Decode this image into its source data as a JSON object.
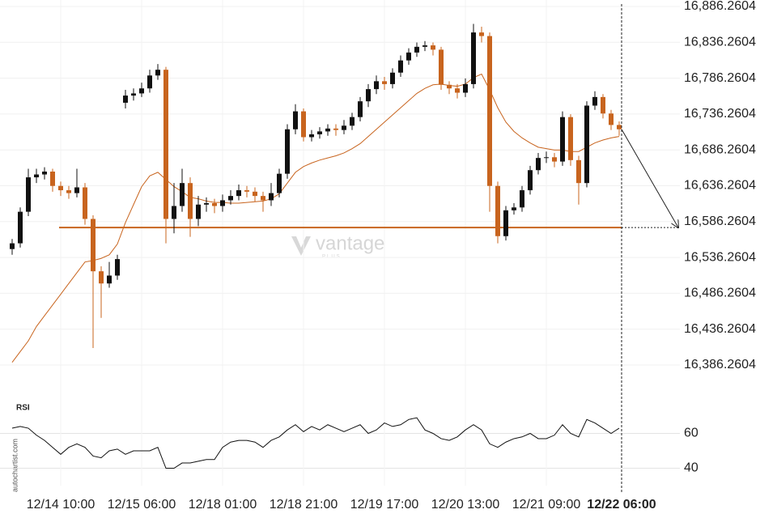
{
  "chart_data": [
    {
      "type": "candlestick",
      "categories": [
        null,
        null,
        null,
        null,
        null,
        null,
        "12/14 10:00",
        null,
        null,
        null,
        null,
        null,
        null,
        null,
        null,
        null,
        "12/15 06:00",
        null,
        null,
        null,
        null,
        null,
        null,
        null,
        null,
        null,
        "12/18 01:00",
        null,
        null,
        null,
        null,
        null,
        null,
        null,
        null,
        null,
        "12/18 21:00",
        null,
        null,
        null,
        null,
        null,
        null,
        null,
        null,
        null,
        "12/19 17:00",
        null,
        null,
        null,
        null,
        null,
        null,
        null,
        null,
        null,
        "12/20 13:00",
        null,
        null,
        null,
        null,
        null,
        null,
        null,
        null,
        null,
        "12/21 09:00",
        null,
        null,
        null,
        null,
        null,
        null,
        null,
        null,
        "12/22 06:00"
      ],
      "open": [
        16548,
        16556,
        16600,
        16648,
        16652,
        16656,
        16636,
        16630,
        16626,
        16634,
        16590,
        16517,
        16500,
        16511,
        16752,
        16762,
        16765,
        16772,
        16790,
        16798,
        16590,
        16608,
        16640,
        16590,
        16610,
        16612,
        16608,
        16616,
        16622,
        16630,
        16628,
        16622,
        16616,
        16626,
        16653,
        16715,
        16740,
        16704,
        16708,
        16712,
        16716,
        16714,
        16720,
        16732,
        16754,
        16771,
        16782,
        16778,
        16794,
        16811,
        16822,
        16830,
        16832,
        16826,
        16777,
        16772,
        16766,
        16778,
        16850,
        16845,
        16636,
        16566,
        16602,
        16606,
        16630,
        16658,
        16675,
        16676,
        16670,
        16732,
        16672,
        16640,
        16748,
        16760,
        16737,
        16721
      ],
      "high": [
        16562,
        16606,
        16660,
        16660,
        16662,
        16660,
        16642,
        16636,
        16660,
        16640,
        16595,
        16524,
        16530,
        16540,
        16770,
        16772,
        16780,
        16798,
        16806,
        16802,
        16640,
        16660,
        16648,
        16622,
        16620,
        16618,
        16624,
        16630,
        16638,
        16636,
        16634,
        16628,
        16640,
        16660,
        16722,
        16750,
        16744,
        16714,
        16718,
        16722,
        16722,
        16728,
        16738,
        16760,
        16778,
        16790,
        16788,
        16800,
        16818,
        16828,
        16836,
        16838,
        16836,
        16830,
        16782,
        16778,
        16786,
        16862,
        16858,
        16850,
        16642,
        16608,
        16612,
        16636,
        16664,
        16682,
        16684,
        16682,
        16740,
        16736,
        16678,
        16754,
        16768,
        16764,
        16742,
        16726
      ],
      "low": [
        16540,
        16550,
        16594,
        16640,
        16645,
        16628,
        16622,
        16618,
        16620,
        16582,
        16410,
        16452,
        16494,
        16505,
        16744,
        16755,
        16760,
        16766,
        16784,
        16556,
        16570,
        16600,
        16565,
        16580,
        16600,
        16598,
        16600,
        16610,
        16616,
        16620,
        16614,
        16600,
        16608,
        16620,
        16646,
        16708,
        16698,
        16698,
        16702,
        16706,
        16706,
        16708,
        16714,
        16726,
        16746,
        16764,
        16770,
        16772,
        16788,
        16805,
        16816,
        16824,
        16818,
        16770,
        16764,
        16758,
        16760,
        16772,
        16836,
        16600,
        16556,
        16560,
        16596,
        16600,
        16624,
        16652,
        16668,
        16662,
        16664,
        16664,
        16610,
        16634,
        16742,
        16730,
        16714,
        16706
      ],
      "close": [
        16556,
        16600,
        16648,
        16652,
        16656,
        16636,
        16630,
        16626,
        16634,
        16590,
        16517,
        16500,
        16511,
        16534,
        16762,
        16765,
        16772,
        16790,
        16798,
        16590,
        16608,
        16640,
        16590,
        16610,
        16612,
        16608,
        16616,
        16622,
        16630,
        16628,
        16622,
        16616,
        16626,
        16653,
        16715,
        16740,
        16704,
        16708,
        16712,
        16716,
        16714,
        16720,
        16732,
        16754,
        16771,
        16782,
        16778,
        16794,
        16811,
        16822,
        16830,
        16832,
        16826,
        16777,
        16772,
        16766,
        16778,
        16850,
        16845,
        16636,
        16566,
        16602,
        16606,
        16630,
        16658,
        16675,
        16676,
        16670,
        16732,
        16672,
        16640,
        16748,
        16760,
        16737,
        16721,
        16715
      ],
      "up_color": "#111111",
      "down_color": "#c8641e",
      "ma": {
        "color": "#c8641e",
        "values": [
          16390,
          16405,
          16420,
          16440,
          16455,
          16470,
          16485,
          16500,
          16515,
          16530,
          16532,
          16535,
          16540,
          16555,
          16585,
          16610,
          16635,
          16650,
          16655,
          16645,
          16635,
          16628,
          16620,
          16618,
          16615,
          16613,
          16613,
          16612,
          16612,
          16613,
          16614,
          16615,
          16618,
          16625,
          16640,
          16655,
          16663,
          16668,
          16672,
          16675,
          16678,
          16682,
          16688,
          16695,
          16705,
          16715,
          16725,
          16735,
          16745,
          16755,
          16765,
          16772,
          16777,
          16778,
          16776,
          16775,
          16778,
          16787,
          16792,
          16770,
          16745,
          16725,
          16712,
          16703,
          16696,
          16690,
          16688,
          16686,
          16686,
          16684,
          16684,
          16690,
          16696,
          16700,
          16703,
          16705
        ]
      },
      "level": {
        "value": 16578,
        "color": "#c8641e"
      },
      "ylim": [
        16342.2604,
        16895.2604
      ],
      "yticks": [
        {
          "value": 16386.2604,
          "label": "16,386.2604"
        },
        {
          "value": 16436.2604,
          "label": "16,436.2604"
        },
        {
          "value": 16486.2604,
          "label": "16,486.2604"
        },
        {
          "value": 16536.2604,
          "label": "16,536.2604"
        },
        {
          "value": 16586.2604,
          "label": "16,586.2604"
        },
        {
          "value": 16636.2604,
          "label": "16,636.2604"
        },
        {
          "value": 16686.2604,
          "label": "16,686.2604"
        },
        {
          "value": 16736.2604,
          "label": "16,736.2604"
        },
        {
          "value": 16786.2604,
          "label": "16,786.2604"
        },
        {
          "value": 16836.2604,
          "label": "16,836.2604"
        },
        {
          "value": 16886.2604,
          "label": "16,886.2604"
        }
      ],
      "grid": true,
      "watermark": "vantage",
      "watermark_sub": "PLUS"
    },
    {
      "type": "line",
      "title": "RSI",
      "color": "#111111",
      "values": [
        63,
        64,
        63,
        59,
        56,
        52,
        48,
        52,
        54,
        52,
        47,
        46,
        50,
        51,
        48,
        50,
        50,
        50,
        52,
        40,
        40,
        43,
        43,
        44,
        45,
        45,
        52,
        55,
        56,
        56,
        55,
        52,
        56,
        58,
        62,
        65,
        61,
        64,
        62,
        65,
        63,
        61,
        63,
        65,
        60,
        62,
        66,
        64,
        65,
        68,
        69,
        62,
        60,
        57,
        56,
        58,
        62,
        65,
        62,
        54,
        52,
        55,
        57,
        58,
        60,
        57,
        57,
        59,
        65,
        60,
        58,
        68,
        66,
        63,
        60,
        63
      ],
      "ylim": [
        30,
        70
      ],
      "yticks": [
        40,
        60
      ],
      "grid": true,
      "source": "autochartist.com"
    }
  ]
}
